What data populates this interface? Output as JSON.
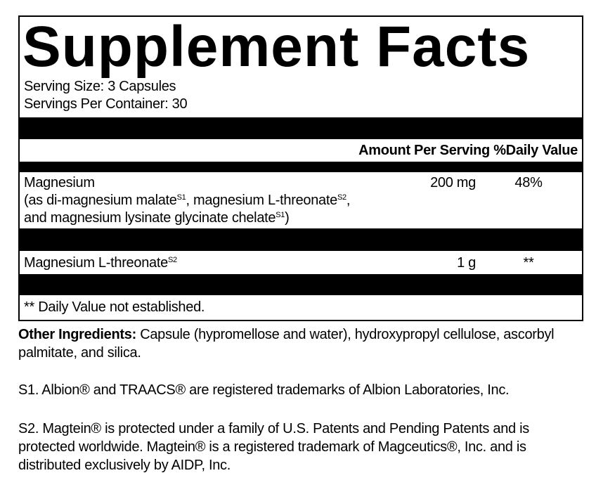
{
  "title": "Supplement Facts",
  "serving_size": "Serving Size: 3 Capsules",
  "servings_per_container": "Servings Per Container: 30",
  "header": {
    "amount": "Amount Per Serving",
    "daily_value": "%Daily Value"
  },
  "rows": [
    {
      "name": [
        [
          {
            "text": "Magnesium"
          }
        ],
        [
          {
            "text": "(as di-magnesium malate"
          },
          {
            "sup": "S1"
          },
          {
            "text": ", magnesium L-threonate"
          },
          {
            "sup": "S2"
          },
          {
            "text": ","
          }
        ],
        [
          {
            "text": "and magnesium lysinate glycinate chelate"
          },
          {
            "sup": "S1"
          },
          {
            "text": ")"
          }
        ]
      ],
      "amount": "200 mg",
      "daily_value": "48%"
    },
    {
      "name": [
        [
          {
            "text": "Magnesium L-threonate"
          },
          {
            "sup": "S2"
          }
        ]
      ],
      "amount": "1 g",
      "daily_value": "**"
    }
  ],
  "footnote": "** Daily Value not established.",
  "other_ingredients": {
    "label": "Other Ingredients:",
    "text": "Capsule (hypromellose and water), hydroxypropyl cellulose, ascorbyl palmitate, and silica."
  },
  "notes": [
    "S1. Albion® and TRAACS® are registered trademarks of Albion Laboratories, Inc.",
    "S2. Magtein® is protected under a family of U.S. Patents and Pending Patents and is protected worldwide. Magtein® is a registered trademark of Magceutics®, Inc. and is distributed exclusively by AIDP, Inc."
  ]
}
